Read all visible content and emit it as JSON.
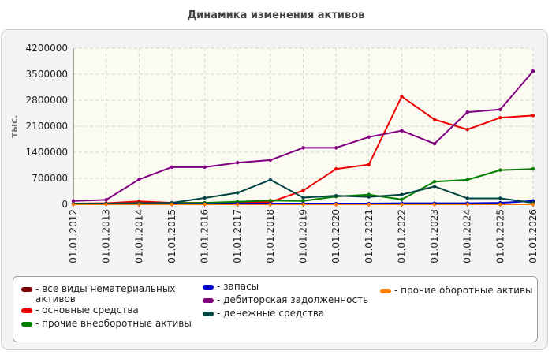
{
  "chart_data": {
    "type": "line",
    "title": "Динамика изменения активов",
    "ylabel": "тыс.",
    "xlabel": "",
    "ylim": [
      0,
      4200000
    ],
    "yticks": [
      0,
      700000,
      1400000,
      2100000,
      2800000,
      3500000,
      4200000
    ],
    "ytick_labels": [
      "0",
      "700000",
      "1400000",
      "2100000",
      "2800000",
      "3500000",
      "4200000"
    ],
    "categories": [
      "01.01.2012",
      "01.01.2013",
      "01.01.2014",
      "01.01.2015",
      "01.01.2016",
      "01.01.2017",
      "01.01.2018",
      "01.01.2019",
      "01.01.2020",
      "01.01.2021",
      "01.01.2022",
      "01.01.2023",
      "01.01.2024",
      "01.01.2025",
      "01.01.2026"
    ],
    "grid": true,
    "legend_position": "bottom",
    "series": [
      {
        "name": "- все виды нематериальных активов",
        "color": "#7a0000",
        "values": [
          0,
          0,
          0,
          0,
          0,
          0,
          0,
          0,
          0,
          0,
          0,
          0,
          0,
          0,
          0
        ]
      },
      {
        "name": "- основные средства",
        "color": "#ee0000",
        "values": [
          20000,
          30000,
          80000,
          40000,
          40000,
          50000,
          60000,
          370000,
          950000,
          1070000,
          2900000,
          2280000,
          2010000,
          2330000,
          2390000
        ]
      },
      {
        "name": "- прочие внеоборотные активы",
        "color": "#008000",
        "values": [
          20000,
          20000,
          30000,
          30000,
          40000,
          70000,
          100000,
          90000,
          210000,
          260000,
          130000,
          610000,
          660000,
          920000,
          950000
        ]
      },
      {
        "name": "- запасы",
        "color": "#0000cc",
        "values": [
          10000,
          10000,
          10000,
          10000,
          10000,
          20000,
          20000,
          20000,
          20000,
          20000,
          30000,
          30000,
          30000,
          40000,
          90000
        ]
      },
      {
        "name": "- дебиторская задолженность",
        "color": "#800080",
        "values": [
          90000,
          120000,
          670000,
          1000000,
          1000000,
          1120000,
          1190000,
          1520000,
          1520000,
          1810000,
          1980000,
          1630000,
          2480000,
          2550000,
          3580000
        ]
      },
      {
        "name": "- денежные средства",
        "color": "#004444",
        "values": [
          10000,
          20000,
          30000,
          40000,
          170000,
          310000,
          660000,
          180000,
          230000,
          200000,
          260000,
          480000,
          160000,
          160000,
          40000
        ]
      },
      {
        "name": "- прочие оборотные активы",
        "color": "#ff8000",
        "values": [
          0,
          0,
          0,
          0,
          0,
          0,
          0,
          0,
          0,
          0,
          0,
          0,
          0,
          0,
          0
        ]
      }
    ]
  }
}
